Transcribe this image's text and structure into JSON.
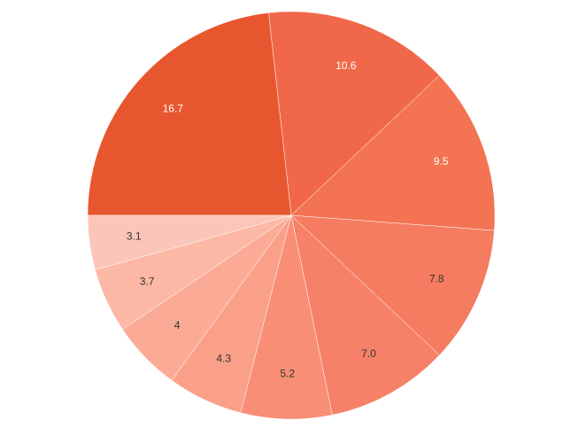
{
  "chart_data": {
    "type": "pie",
    "values": [
      16.7,
      10.6,
      9.5,
      7.8,
      7.0,
      5.2,
      4.3,
      4,
      3.7,
      3.1
    ],
    "value_labels": [
      "16.7",
      "10.6",
      "9.5",
      "7.8",
      "7.0",
      "5.2",
      "4.3",
      "4",
      "3.7",
      "3.1"
    ],
    "colors": [
      "#e8562f",
      "#f06849",
      "#f37352",
      "#f57c60",
      "#f68168",
      "#f88e76",
      "#faa088",
      "#fbab95",
      "#fcb8a5",
      "#fcc5b9"
    ]
  }
}
